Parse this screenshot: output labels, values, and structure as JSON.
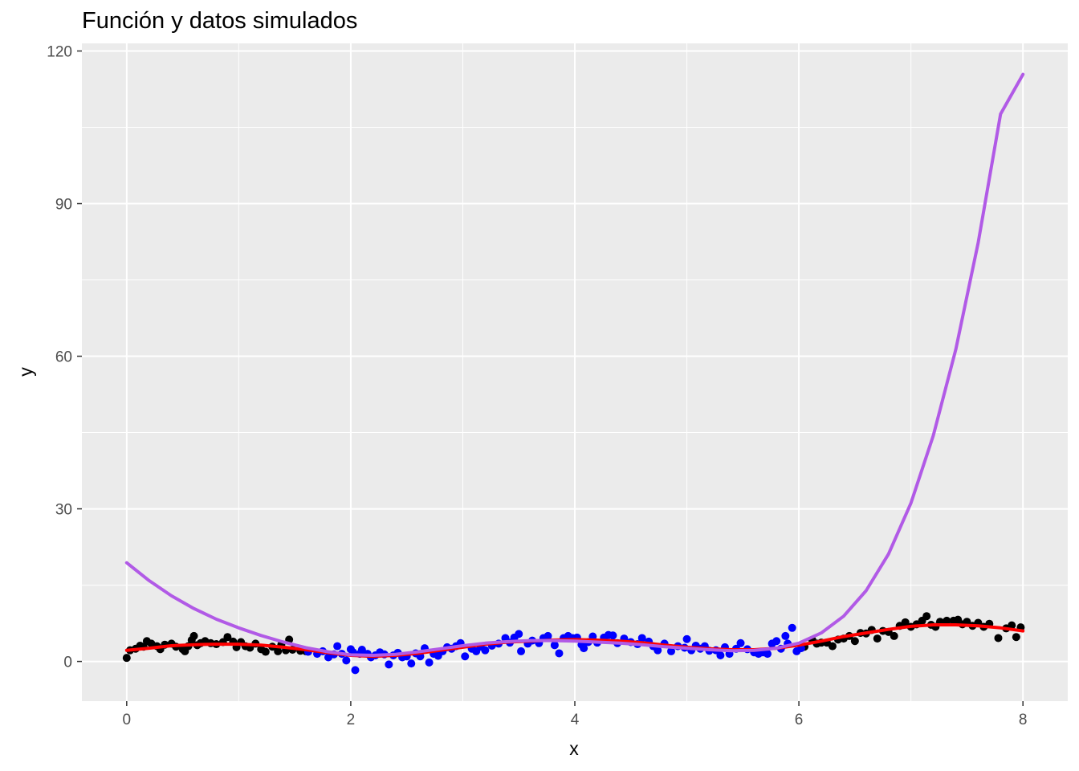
{
  "title": "Función y datos simulados",
  "chart_data": {
    "type": "scatter",
    "title": "Función y datos simulados",
    "xlabel": "x",
    "ylabel": "y",
    "xlim": [
      -0.4,
      8.4
    ],
    "ylim": [
      -7.8,
      121.5
    ],
    "x_ticks": [
      0,
      2,
      4,
      6,
      8
    ],
    "y_ticks": [
      0,
      30,
      60,
      90,
      120
    ],
    "grid": true,
    "panel_background": "#EBEBEB",
    "series": [
      {
        "kind": "points",
        "color": "#000000",
        "points": [
          [
            0.0,
            0.7
          ],
          [
            0.03,
            2.2
          ],
          [
            0.08,
            2.5
          ],
          [
            0.12,
            3.1
          ],
          [
            0.15,
            2.9
          ],
          [
            0.18,
            4.0
          ],
          [
            0.22,
            3.5
          ],
          [
            0.27,
            3.0
          ],
          [
            0.3,
            2.4
          ],
          [
            0.34,
            3.3
          ],
          [
            0.4,
            3.5
          ],
          [
            0.44,
            2.9
          ],
          [
            0.5,
            2.4
          ],
          [
            0.52,
            2.0
          ],
          [
            0.55,
            3.0
          ],
          [
            0.58,
            4.2
          ],
          [
            0.6,
            5.0
          ],
          [
            0.63,
            3.2
          ],
          [
            0.66,
            3.6
          ],
          [
            0.7,
            4.0
          ],
          [
            0.75,
            3.6
          ],
          [
            0.8,
            3.4
          ],
          [
            0.86,
            3.8
          ],
          [
            0.9,
            4.8
          ],
          [
            0.95,
            3.9
          ],
          [
            0.98,
            2.8
          ],
          [
            1.02,
            3.8
          ],
          [
            1.06,
            3.0
          ],
          [
            1.1,
            2.7
          ],
          [
            1.15,
            3.5
          ],
          [
            1.2,
            2.4
          ],
          [
            1.24,
            1.9
          ],
          [
            1.3,
            2.9
          ],
          [
            1.35,
            2.0
          ],
          [
            1.38,
            3.3
          ],
          [
            1.42,
            2.2
          ],
          [
            1.45,
            4.3
          ],
          [
            1.48,
            2.3
          ],
          [
            1.55,
            2.1
          ],
          [
            1.6,
            2.0
          ],
          [
            6.05,
            2.9
          ],
          [
            6.12,
            4.2
          ],
          [
            6.16,
            3.5
          ],
          [
            6.2,
            3.7
          ],
          [
            6.25,
            3.7
          ],
          [
            6.3,
            3.0
          ],
          [
            6.35,
            4.3
          ],
          [
            6.4,
            4.5
          ],
          [
            6.45,
            5.0
          ],
          [
            6.5,
            4.0
          ],
          [
            6.55,
            5.6
          ],
          [
            6.6,
            5.5
          ],
          [
            6.65,
            6.2
          ],
          [
            6.7,
            4.5
          ],
          [
            6.75,
            6.0
          ],
          [
            6.8,
            5.8
          ],
          [
            6.85,
            5.0
          ],
          [
            6.9,
            7.0
          ],
          [
            6.95,
            7.7
          ],
          [
            7.0,
            6.8
          ],
          [
            7.05,
            7.3
          ],
          [
            7.1,
            8.0
          ],
          [
            7.14,
            8.9
          ],
          [
            7.18,
            7.2
          ],
          [
            7.22,
            6.8
          ],
          [
            7.26,
            7.8
          ],
          [
            7.32,
            8.0
          ],
          [
            7.38,
            8.0
          ],
          [
            7.42,
            8.2
          ],
          [
            7.46,
            7.3
          ],
          [
            7.5,
            7.8
          ],
          [
            7.55,
            7.0
          ],
          [
            7.6,
            7.6
          ],
          [
            7.65,
            6.8
          ],
          [
            7.7,
            7.4
          ],
          [
            7.78,
            4.6
          ],
          [
            7.85,
            6.5
          ],
          [
            7.9,
            7.1
          ],
          [
            7.94,
            4.8
          ],
          [
            7.98,
            6.7
          ]
        ]
      },
      {
        "kind": "points",
        "color": "#0000FF",
        "points": [
          [
            1.62,
            1.9
          ],
          [
            1.7,
            1.5
          ],
          [
            1.75,
            2.0
          ],
          [
            1.8,
            0.8
          ],
          [
            1.85,
            1.4
          ],
          [
            1.88,
            3.0
          ],
          [
            1.92,
            1.5
          ],
          [
            1.96,
            0.2
          ],
          [
            2.0,
            2.4
          ],
          [
            2.02,
            1.8
          ],
          [
            2.04,
            -1.7
          ],
          [
            2.08,
            1.5
          ],
          [
            2.1,
            2.3
          ],
          [
            2.15,
            1.5
          ],
          [
            2.18,
            0.8
          ],
          [
            2.22,
            1.2
          ],
          [
            2.26,
            1.8
          ],
          [
            2.3,
            1.4
          ],
          [
            2.34,
            -0.6
          ],
          [
            2.38,
            1.2
          ],
          [
            2.42,
            1.7
          ],
          [
            2.46,
            0.8
          ],
          [
            2.5,
            1.0
          ],
          [
            2.54,
            -0.4
          ],
          [
            2.58,
            1.6
          ],
          [
            2.62,
            1.0
          ],
          [
            2.66,
            2.6
          ],
          [
            2.7,
            -0.2
          ],
          [
            2.74,
            1.5
          ],
          [
            2.78,
            1.1
          ],
          [
            2.82,
            2.0
          ],
          [
            2.86,
            2.8
          ],
          [
            2.9,
            2.5
          ],
          [
            2.94,
            3.0
          ],
          [
            2.98,
            3.6
          ],
          [
            3.02,
            1.0
          ],
          [
            3.08,
            2.5
          ],
          [
            3.12,
            2.0
          ],
          [
            3.16,
            2.9
          ],
          [
            3.2,
            2.2
          ],
          [
            3.26,
            3.1
          ],
          [
            3.32,
            3.5
          ],
          [
            3.38,
            4.6
          ],
          [
            3.42,
            3.7
          ],
          [
            3.46,
            4.7
          ],
          [
            3.5,
            5.4
          ],
          [
            3.52,
            2.0
          ],
          [
            3.58,
            3.5
          ],
          [
            3.62,
            4.1
          ],
          [
            3.68,
            3.6
          ],
          [
            3.72,
            4.6
          ],
          [
            3.76,
            5.0
          ],
          [
            3.82,
            3.2
          ],
          [
            3.86,
            1.6
          ],
          [
            3.9,
            4.6
          ],
          [
            3.94,
            5.0
          ],
          [
            3.98,
            4.6
          ],
          [
            4.02,
            4.7
          ],
          [
            4.06,
            3.3
          ],
          [
            4.08,
            2.6
          ],
          [
            4.12,
            3.8
          ],
          [
            4.16,
            4.9
          ],
          [
            4.2,
            3.7
          ],
          [
            4.26,
            4.7
          ],
          [
            4.3,
            5.2
          ],
          [
            4.34,
            5.1
          ],
          [
            4.38,
            3.6
          ],
          [
            4.44,
            4.5
          ],
          [
            4.5,
            3.8
          ],
          [
            4.56,
            3.4
          ],
          [
            4.6,
            4.6
          ],
          [
            4.66,
            3.9
          ],
          [
            4.7,
            3.0
          ],
          [
            4.74,
            2.2
          ],
          [
            4.8,
            3.5
          ],
          [
            4.86,
            2.0
          ],
          [
            4.92,
            3.0
          ],
          [
            4.98,
            2.7
          ],
          [
            5.0,
            4.4
          ],
          [
            5.04,
            2.2
          ],
          [
            5.08,
            3.1
          ],
          [
            5.12,
            2.5
          ],
          [
            5.16,
            3.0
          ],
          [
            5.2,
            2.1
          ],
          [
            5.26,
            2.2
          ],
          [
            5.3,
            1.2
          ],
          [
            5.34,
            2.8
          ],
          [
            5.38,
            1.5
          ],
          [
            5.44,
            2.5
          ],
          [
            5.48,
            3.6
          ],
          [
            5.54,
            2.4
          ],
          [
            5.6,
            1.8
          ],
          [
            5.64,
            1.5
          ],
          [
            5.68,
            1.8
          ],
          [
            5.72,
            1.5
          ],
          [
            5.76,
            3.5
          ],
          [
            5.8,
            4.0
          ],
          [
            5.84,
            2.5
          ],
          [
            5.88,
            5.0
          ],
          [
            5.9,
            3.5
          ],
          [
            5.94,
            6.6
          ],
          [
            5.98,
            2.0
          ],
          [
            6.02,
            2.6
          ]
        ]
      },
      {
        "kind": "line",
        "color": "#FF0000",
        "points": [
          [
            0.0,
            2.2
          ],
          [
            0.2,
            2.6
          ],
          [
            0.4,
            3.1
          ],
          [
            0.6,
            3.3
          ],
          [
            0.8,
            3.4
          ],
          [
            1.0,
            3.4
          ],
          [
            1.2,
            3.2
          ],
          [
            1.4,
            2.8
          ],
          [
            1.6,
            2.3
          ],
          [
            1.8,
            1.7
          ],
          [
            2.0,
            1.2
          ],
          [
            2.2,
            1.0
          ],
          [
            2.4,
            1.2
          ],
          [
            2.6,
            1.6
          ],
          [
            2.8,
            2.2
          ],
          [
            3.0,
            2.8
          ],
          [
            3.2,
            3.4
          ],
          [
            3.4,
            3.8
          ],
          [
            3.6,
            4.0
          ],
          [
            3.8,
            4.2
          ],
          [
            4.0,
            4.3
          ],
          [
            4.2,
            4.2
          ],
          [
            4.4,
            4.0
          ],
          [
            4.6,
            3.7
          ],
          [
            4.8,
            3.2
          ],
          [
            5.0,
            2.8
          ],
          [
            5.2,
            2.5
          ],
          [
            5.4,
            2.3
          ],
          [
            5.6,
            2.3
          ],
          [
            5.8,
            2.6
          ],
          [
            6.0,
            3.2
          ],
          [
            6.2,
            4.0
          ],
          [
            6.4,
            4.9
          ],
          [
            6.6,
            5.6
          ],
          [
            6.8,
            6.3
          ],
          [
            7.0,
            6.9
          ],
          [
            7.2,
            7.2
          ],
          [
            7.4,
            7.2
          ],
          [
            7.6,
            7.0
          ],
          [
            7.8,
            6.6
          ],
          [
            8.0,
            6.0
          ]
        ]
      },
      {
        "kind": "line",
        "color": "#B15AE6",
        "points": [
          [
            0.0,
            19.4
          ],
          [
            0.2,
            15.9
          ],
          [
            0.4,
            12.9
          ],
          [
            0.6,
            10.4
          ],
          [
            0.8,
            8.3
          ],
          [
            1.0,
            6.6
          ],
          [
            1.2,
            5.1
          ],
          [
            1.4,
            3.8
          ],
          [
            1.6,
            2.7
          ],
          [
            1.8,
            1.9
          ],
          [
            2.0,
            1.3
          ],
          [
            2.2,
            1.2
          ],
          [
            2.4,
            1.4
          ],
          [
            2.6,
            1.9
          ],
          [
            2.8,
            2.5
          ],
          [
            3.0,
            3.1
          ],
          [
            3.2,
            3.6
          ],
          [
            3.4,
            3.9
          ],
          [
            3.6,
            4.1
          ],
          [
            3.8,
            4.1
          ],
          [
            4.0,
            4.0
          ],
          [
            4.2,
            3.8
          ],
          [
            4.4,
            3.6
          ],
          [
            4.6,
            3.3
          ],
          [
            4.8,
            2.9
          ],
          [
            5.0,
            2.6
          ],
          [
            5.2,
            2.3
          ],
          [
            5.4,
            2.1
          ],
          [
            5.6,
            2.2
          ],
          [
            5.8,
            2.6
          ],
          [
            6.0,
            3.6
          ],
          [
            6.2,
            5.6
          ],
          [
            6.4,
            8.9
          ],
          [
            6.6,
            13.9
          ],
          [
            6.8,
            21.1
          ],
          [
            7.0,
            31.1
          ],
          [
            7.2,
            44.4
          ],
          [
            7.4,
            61.3
          ],
          [
            7.6,
            82.3
          ],
          [
            7.8,
            107.6
          ],
          [
            8.0,
            115.4
          ]
        ]
      }
    ]
  }
}
